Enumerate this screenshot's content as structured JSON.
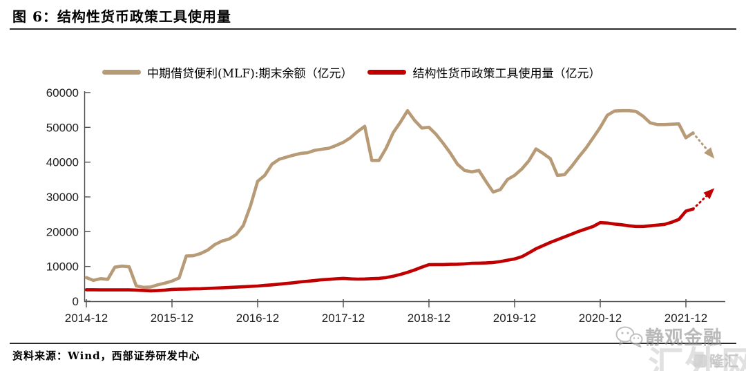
{
  "figure": {
    "title": "图 6：结构性货币政策工具使用量",
    "source": "资料来源：Wind，西部证券研发中心"
  },
  "watermarks": {
    "wechat_text": "静观金融",
    "big_text": "汇外网",
    "logo_text": "隆汇"
  },
  "chart_data": {
    "type": "line",
    "title": "图 6：结构性货币政策工具使用量",
    "unit": "亿元",
    "grid": false,
    "legend_position": "top",
    "x_axis": {
      "start": "2014-12",
      "frequency": "monthly",
      "tick_labels": [
        "2014-12",
        "2015-12",
        "2016-12",
        "2017-12",
        "2018-12",
        "2019-12",
        "2020-12",
        "2021-12"
      ],
      "tick_month_index": [
        0,
        12,
        24,
        36,
        48,
        60,
        72,
        84
      ]
    },
    "y_axis": {
      "ticks": [
        0,
        10000,
        20000,
        30000,
        40000,
        50000,
        60000
      ],
      "range": [
        0,
        60000
      ]
    },
    "series": [
      {
        "name": "中期借贷便利(MLF):期末余额（亿元）",
        "color": "#B79A76",
        "values": [
          6800,
          6000,
          6500,
          6300,
          9800,
          10100,
          9900,
          4400,
          4000,
          4100,
          4700,
          5200,
          5800,
          6700,
          13000,
          13100,
          13700,
          14700,
          16300,
          17300,
          17900,
          19200,
          21800,
          27500,
          34500,
          36200,
          39400,
          40800,
          41400,
          42000,
          42500,
          42700,
          43400,
          43700,
          44000,
          44800,
          45700,
          47000,
          48800,
          50300,
          40500,
          40500,
          44000,
          48500,
          51500,
          54800,
          52000,
          49800,
          50000,
          48000,
          45400,
          42600,
          39400,
          37600,
          37200,
          37600,
          34400,
          31400,
          32100,
          35000,
          36200,
          38000,
          40400,
          43800,
          42500,
          41000,
          36200,
          36400,
          38800,
          41500,
          44000,
          47000,
          50000,
          53500,
          54700,
          54800,
          54800,
          54600,
          53200,
          51300,
          50800,
          50800,
          50900,
          51000,
          47000,
          48400
        ],
        "forecast": {
          "style": "dotted-arrow",
          "to_month": 88,
          "to_value": 41000
        }
      },
      {
        "name": "结构性货币政策工具使用量（亿元）",
        "color": "#C00000",
        "values": [
          3300,
          3300,
          3250,
          3250,
          3250,
          3250,
          3250,
          3200,
          3100,
          3000,
          3050,
          3200,
          3400,
          3450,
          3500,
          3550,
          3600,
          3700,
          3780,
          3850,
          3950,
          4050,
          4150,
          4270,
          4380,
          4550,
          4700,
          4900,
          5100,
          5300,
          5570,
          5750,
          5950,
          6170,
          6300,
          6450,
          6570,
          6430,
          6350,
          6400,
          6500,
          6570,
          6800,
          7200,
          7700,
          8300,
          9000,
          9800,
          10500,
          10550,
          10550,
          10600,
          10650,
          10750,
          10900,
          10950,
          11000,
          11150,
          11400,
          11800,
          12150,
          12800,
          13900,
          15100,
          16000,
          16900,
          17700,
          18500,
          19300,
          20100,
          20800,
          21500,
          22600,
          22500,
          22200,
          22000,
          21700,
          21500,
          21500,
          21700,
          21900,
          22100,
          22700,
          23500,
          25900,
          26500
        ],
        "forecast": {
          "style": "dotted-arrow",
          "to_month": 88,
          "to_value": 32500
        }
      }
    ]
  }
}
